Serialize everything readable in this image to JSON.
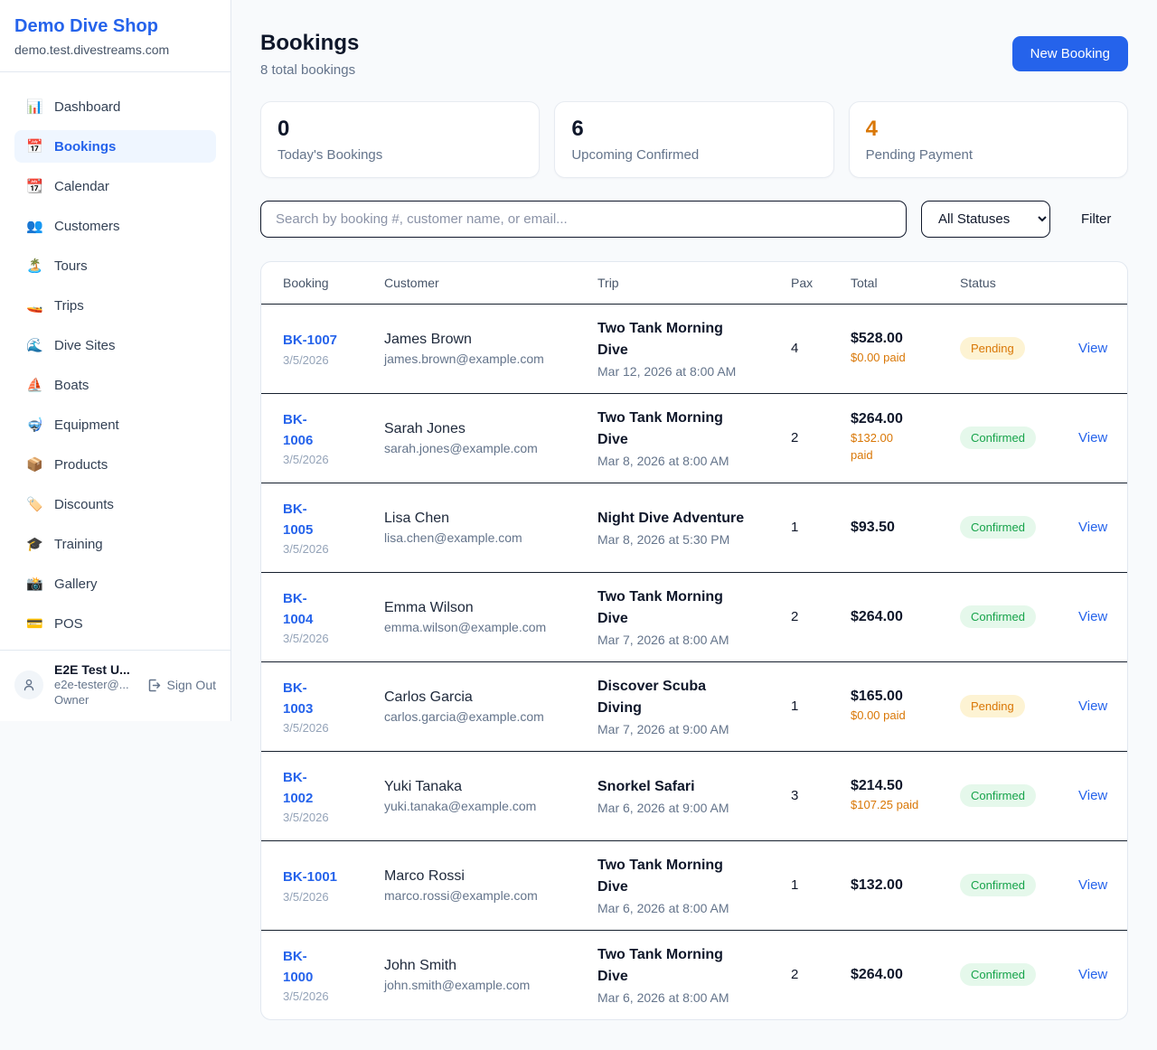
{
  "colors": {
    "accent": "#2563eb",
    "orange": "#d97706",
    "green": "#16a34a"
  },
  "sidebar": {
    "title": "Demo Dive Shop",
    "domain": "demo.test.divestreams.com",
    "items": [
      {
        "label": "Dashboard",
        "icon": "📊",
        "icon_name": "bar-chart-icon",
        "active": false
      },
      {
        "label": "Bookings",
        "icon": "📅",
        "icon_name": "calendar-icon",
        "active": true
      },
      {
        "label": "Calendar",
        "icon": "📆",
        "icon_name": "tear-off-calendar-icon",
        "active": false
      },
      {
        "label": "Customers",
        "icon": "👥",
        "icon_name": "people-icon",
        "active": false
      },
      {
        "label": "Tours",
        "icon": "🏝️",
        "icon_name": "island-icon",
        "active": false
      },
      {
        "label": "Trips",
        "icon": "🚤",
        "icon_name": "speedboat-icon",
        "active": false
      },
      {
        "label": "Dive Sites",
        "icon": "🌊",
        "icon_name": "wave-icon",
        "active": false
      },
      {
        "label": "Boats",
        "icon": "⛵",
        "icon_name": "sailboat-icon",
        "active": false
      },
      {
        "label": "Equipment",
        "icon": "🤿",
        "icon_name": "diving-mask-icon",
        "active": false
      },
      {
        "label": "Products",
        "icon": "📦",
        "icon_name": "package-icon",
        "active": false
      },
      {
        "label": "Discounts",
        "icon": "🏷️",
        "icon_name": "label-tag-icon",
        "active": false
      },
      {
        "label": "Training",
        "icon": "🎓",
        "icon_name": "graduation-cap-icon",
        "active": false
      },
      {
        "label": "Gallery",
        "icon": "📸",
        "icon_name": "camera-flash-icon",
        "active": false
      },
      {
        "label": "POS",
        "icon": "💳",
        "icon_name": "credit-card-icon",
        "active": false
      }
    ],
    "user": {
      "name": "E2E Test U...",
      "email": "e2e-tester@...",
      "role": "Owner",
      "sign_out": "Sign Out"
    }
  },
  "header": {
    "title": "Bookings",
    "subtitle": "8 total bookings",
    "new_booking_label": "New Booking"
  },
  "stats": [
    {
      "value": "0",
      "label": "Today's Bookings",
      "accent": false
    },
    {
      "value": "6",
      "label": "Upcoming Confirmed",
      "accent": false
    },
    {
      "value": "4",
      "label": "Pending Payment",
      "accent": true
    }
  ],
  "filters": {
    "search_placeholder": "Search by booking #, customer name, or email...",
    "status_value": "All Statuses",
    "filter_label": "Filter"
  },
  "table": {
    "columns": [
      "Booking",
      "Customer",
      "Trip",
      "Pax",
      "Total",
      "Status"
    ],
    "view_label": "View",
    "rows": [
      {
        "id": "BK-1007",
        "id_wrapped": false,
        "date": "3/5/2026",
        "customer": "James Brown",
        "email": "james.brown@example.com",
        "trip": "Two Tank Morning Dive",
        "trip_datetime": "Mar 12, 2026 at 8:00 AM",
        "pax": "4",
        "total": "$528.00",
        "paid": "$0.00 paid",
        "paid_wrapped": false,
        "status": "Pending"
      },
      {
        "id": "BK-1006",
        "id_wrapped": true,
        "date": "3/5/2026",
        "customer": "Sarah Jones",
        "email": "sarah.jones@example.com",
        "trip": "Two Tank Morning Dive",
        "trip_datetime": "Mar 8, 2026 at 8:00 AM",
        "pax": "2",
        "total": "$264.00",
        "paid": "$132.00 paid",
        "paid_wrapped": true,
        "status": "Confirmed"
      },
      {
        "id": "BK-1005",
        "id_wrapped": true,
        "date": "3/5/2026",
        "customer": "Lisa Chen",
        "email": "lisa.chen@example.com",
        "trip": "Night Dive Adventure",
        "trip_datetime": "Mar 8, 2026 at 5:30 PM",
        "pax": "1",
        "total": "$93.50",
        "paid": null,
        "paid_wrapped": false,
        "status": "Confirmed"
      },
      {
        "id": "BK-1004",
        "id_wrapped": true,
        "date": "3/5/2026",
        "customer": "Emma Wilson",
        "email": "emma.wilson@example.com",
        "trip": "Two Tank Morning Dive",
        "trip_datetime": "Mar 7, 2026 at 8:00 AM",
        "pax": "2",
        "total": "$264.00",
        "paid": null,
        "paid_wrapped": false,
        "status": "Confirmed"
      },
      {
        "id": "BK-1003",
        "id_wrapped": true,
        "date": "3/5/2026",
        "customer": "Carlos Garcia",
        "email": "carlos.garcia@example.com",
        "trip": "Discover Scuba Diving",
        "trip_datetime": "Mar 7, 2026 at 9:00 AM",
        "pax": "1",
        "total": "$165.00",
        "paid": "$0.00 paid",
        "paid_wrapped": false,
        "status": "Pending"
      },
      {
        "id": "BK-1002",
        "id_wrapped": true,
        "date": "3/5/2026",
        "customer": "Yuki Tanaka",
        "email": "yuki.tanaka@example.com",
        "trip": "Snorkel Safari",
        "trip_datetime": "Mar 6, 2026 at 9:00 AM",
        "pax": "3",
        "total": "$214.50",
        "paid": "$107.25 paid",
        "paid_wrapped": false,
        "status": "Confirmed"
      },
      {
        "id": "BK-1001",
        "id_wrapped": false,
        "date": "3/5/2026",
        "customer": "Marco Rossi",
        "email": "marco.rossi@example.com",
        "trip": "Two Tank Morning Dive",
        "trip_datetime": "Mar 6, 2026 at 8:00 AM",
        "pax": "1",
        "total": "$132.00",
        "paid": null,
        "paid_wrapped": false,
        "status": "Confirmed"
      },
      {
        "id": "BK-1000",
        "id_wrapped": true,
        "date": "3/5/2026",
        "customer": "John Smith",
        "email": "john.smith@example.com",
        "trip": "Two Tank Morning Dive",
        "trip_datetime": "Mar 6, 2026 at 8:00 AM",
        "pax": "2",
        "total": "$264.00",
        "paid": null,
        "paid_wrapped": false,
        "status": "Confirmed"
      }
    ]
  }
}
